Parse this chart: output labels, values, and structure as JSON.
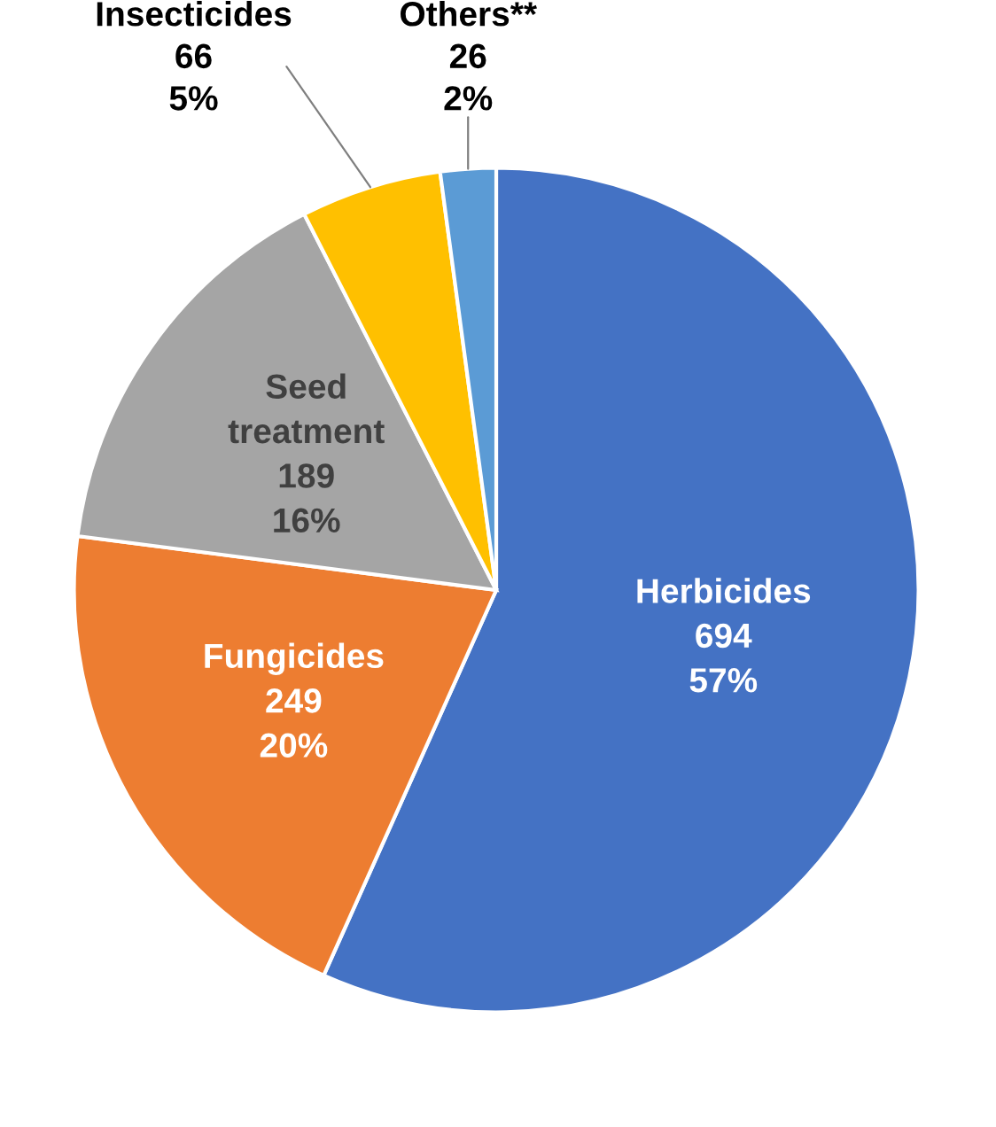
{
  "chart_data": {
    "type": "pie",
    "categories": [
      "Herbicides",
      "Fungicides",
      "Seed treatment",
      "Insecticides",
      "Others**"
    ],
    "values": [
      694,
      249,
      189,
      66,
      26
    ],
    "colors": [
      "#4472c4",
      "#ed7d31",
      "#a5a5a5",
      "#ffc000",
      "#5b9bd5"
    ],
    "value_labels": [
      "694\n57%",
      "249\n20%",
      "189\n16%",
      "66\n5%",
      "26\n2%"
    ]
  }
}
